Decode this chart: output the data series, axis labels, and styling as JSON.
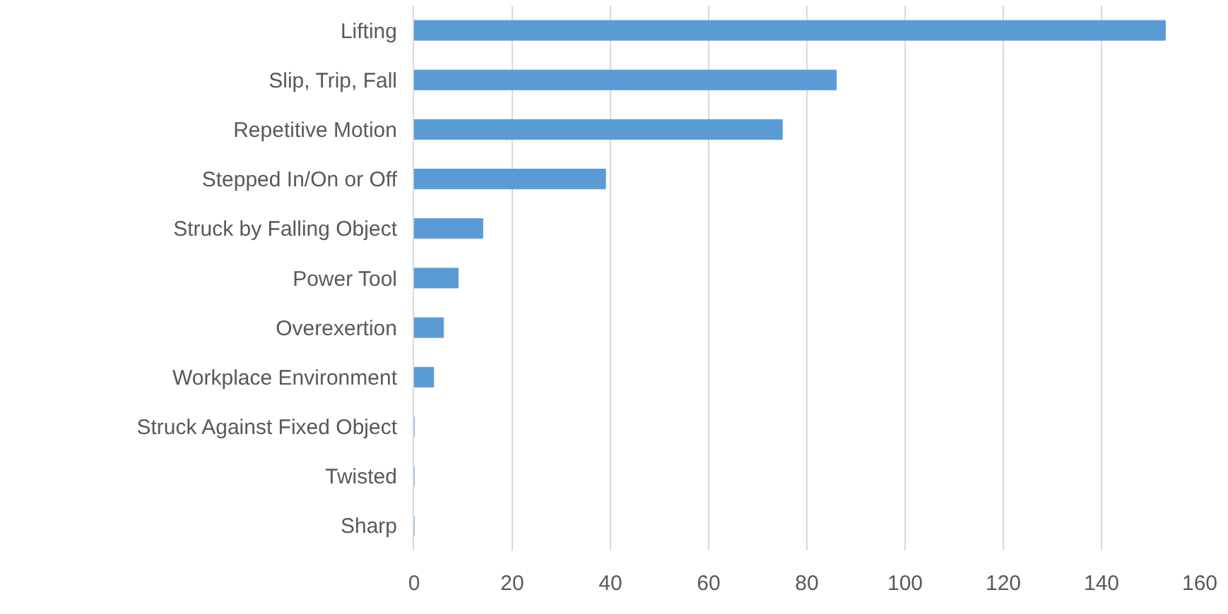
{
  "chart_data": {
    "type": "bar",
    "orientation": "horizontal",
    "categories": [
      "Lifting",
      "Slip, Trip, Fall",
      "Repetitive Motion",
      "Stepped In/On or Off",
      "Struck by Falling Object",
      "Power Tool",
      "Overexertion",
      "Workplace Environment",
      "Struck Against Fixed Object",
      "Twisted",
      "Sharp"
    ],
    "values": [
      153,
      86,
      75,
      39,
      14,
      9,
      6,
      4,
      0,
      0,
      0
    ],
    "color": "#5b9bd5",
    "xlim": [
      0,
      160
    ],
    "xticks": [
      0,
      20,
      40,
      60,
      80,
      100,
      120,
      140,
      160
    ],
    "grid": "x",
    "legend": false
  }
}
